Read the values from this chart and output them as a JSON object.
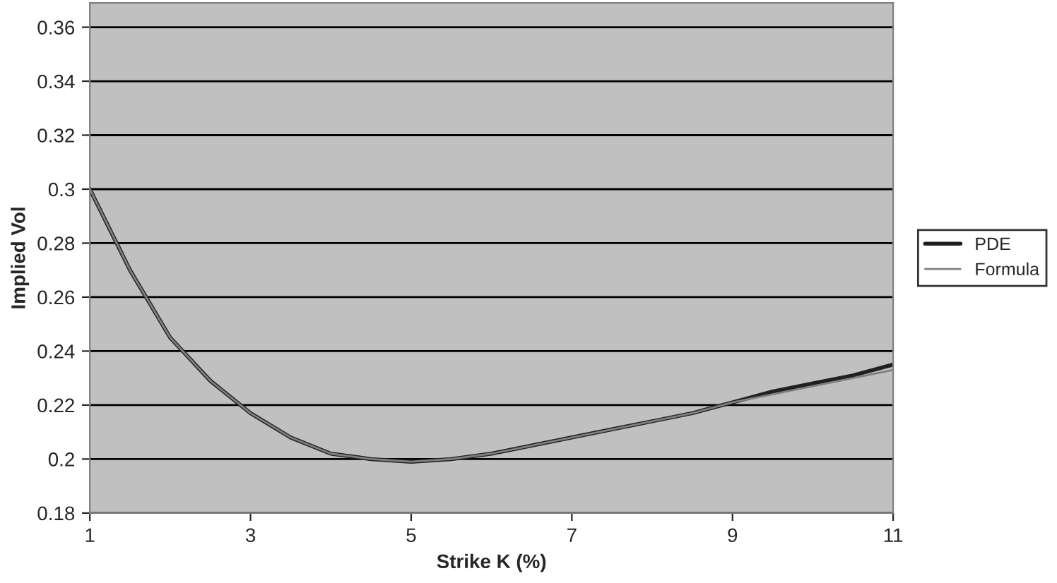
{
  "chart_data": {
    "type": "line",
    "xlabel": "Strike K (%)",
    "ylabel": "Implied Vol",
    "x": [
      1,
      1.5,
      2,
      2.5,
      3,
      3.5,
      4,
      4.5,
      5,
      5.5,
      6,
      6.5,
      7,
      7.5,
      8,
      8.5,
      9,
      9.5,
      10,
      10.5,
      11
    ],
    "series": [
      {
        "name": "PDE",
        "color": "#202020",
        "values": [
          0.3,
          0.27,
          0.245,
          0.229,
          0.217,
          0.208,
          0.202,
          0.2,
          0.199,
          0.2,
          0.202,
          0.205,
          0.208,
          0.211,
          0.214,
          0.217,
          0.221,
          0.225,
          0.228,
          0.231,
          0.235
        ]
      },
      {
        "name": "Formula",
        "color": "#808080",
        "values": [
          0.3,
          0.27,
          0.245,
          0.229,
          0.217,
          0.208,
          0.202,
          0.2,
          0.199,
          0.2,
          0.202,
          0.205,
          0.208,
          0.211,
          0.214,
          0.217,
          0.221,
          0.224,
          0.227,
          0.23,
          0.233
        ]
      }
    ],
    "xlim": [
      1,
      11
    ],
    "xticks": [
      1,
      3,
      5,
      7,
      9,
      11
    ],
    "ylim": [
      0.18,
      0.369
    ],
    "yticks": [
      0.18,
      0.2,
      0.22,
      0.24,
      0.26,
      0.28,
      0.3,
      0.32,
      0.34,
      0.36
    ],
    "grid": "y",
    "legend": "right",
    "marker": "none",
    "line_style": "solid"
  }
}
